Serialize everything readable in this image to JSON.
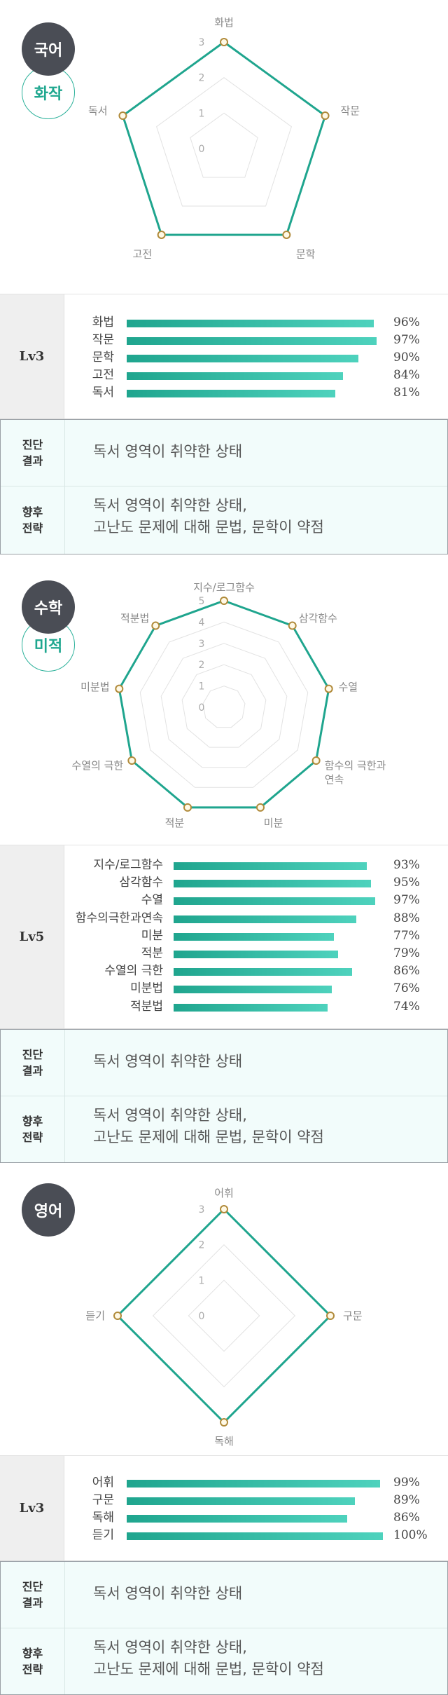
{
  "chart_data": [
    {
      "type": "radar",
      "subject": "국어",
      "subcourse": "화작",
      "axes": [
        "화법",
        "작문",
        "문학",
        "고전",
        "독서"
      ],
      "values": [
        3,
        3,
        3,
        3,
        3
      ],
      "ticks": [
        "0",
        "1",
        "2",
        "3"
      ],
      "range": [
        0,
        3
      ],
      "level": "Lv3",
      "bars": [
        {
          "label": "화법",
          "value": 96,
          "display": "96%"
        },
        {
          "label": "작문",
          "value": 97,
          "display": "97%"
        },
        {
          "label": "문학",
          "value": 90,
          "display": "90%"
        },
        {
          "label": "고전",
          "value": 84,
          "display": "84%"
        },
        {
          "label": "독서",
          "value": 81,
          "display": "81%"
        }
      ],
      "diagnosis_label": "진단 결과",
      "diagnosis_text": "독서 영역이 취약한 상태",
      "strategy_label": "향후 전략",
      "strategy_lines": [
        "독서 영역이 취약한 상태,",
        "고난도 문제에 대해 문법, 문학이 약점"
      ]
    },
    {
      "type": "radar",
      "subject": "수학",
      "subcourse": "미적",
      "axes": [
        "지수/로그함수",
        "삼각함수",
        "수열",
        "함수의 극한과 연속",
        "미분",
        "적분",
        "수열의 극한",
        "미분법",
        "적분법"
      ],
      "values": [
        5,
        5,
        5,
        5,
        5,
        5,
        5,
        5,
        5
      ],
      "ticks": [
        "0",
        "1",
        "2",
        "3",
        "4",
        "5"
      ],
      "range": [
        0,
        5
      ],
      "level": "Lv5",
      "bars": [
        {
          "label": "지수/로그함수",
          "value": 93,
          "display": "93%"
        },
        {
          "label": "삼각함수",
          "value": 95,
          "display": "95%"
        },
        {
          "label": "수열",
          "value": 97,
          "display": "97%"
        },
        {
          "label": "함수의극한과연속",
          "value": 88,
          "display": "88%"
        },
        {
          "label": "미분",
          "value": 77,
          "display": "77%"
        },
        {
          "label": "적분",
          "value": 79,
          "display": "79%"
        },
        {
          "label": "수열의 극한",
          "value": 86,
          "display": "86%"
        },
        {
          "label": "미분법",
          "value": 76,
          "display": "76%"
        },
        {
          "label": "적분법",
          "value": 74,
          "display": "74%"
        }
      ],
      "diagnosis_label": "진단 결과",
      "diagnosis_text": "독서 영역이 취약한 상태",
      "strategy_label": "향후 전략",
      "strategy_lines": [
        "독서 영역이 취약한 상태,",
        "고난도 문제에 대해 문법, 문학이 약점"
      ]
    },
    {
      "type": "radar",
      "subject": "영어",
      "subcourse": "",
      "axes": [
        "어휘",
        "구문",
        "독해",
        "듣기"
      ],
      "values": [
        3,
        3,
        3,
        3
      ],
      "ticks": [
        "0",
        "1",
        "2",
        "3"
      ],
      "range": [
        0,
        3
      ],
      "level": "Lv3",
      "bars": [
        {
          "label": "어휘",
          "value": 99,
          "display": "99%"
        },
        {
          "label": "구문",
          "value": 89,
          "display": "89%"
        },
        {
          "label": "독해",
          "value": 86,
          "display": "86%"
        },
        {
          "label": "듣기",
          "value": 100,
          "display": "100%"
        }
      ],
      "diagnosis_label": "진단 결과",
      "diagnosis_text": "독서 영역이 취약한 상태",
      "strategy_label": "향후 전략",
      "strategy_lines": [
        "독서 영역이 취약한 상태,",
        "고난도 문제에 대해 문법, 문학이 약점"
      ]
    }
  ],
  "colors": {
    "accent": "#1fa58e",
    "badge_dark": "#4a4d55",
    "grid": "#dddddd",
    "point_fill": "#fff9e6",
    "point_stroke": "#b08a3a",
    "diag_bg": "#f2fcfb"
  }
}
